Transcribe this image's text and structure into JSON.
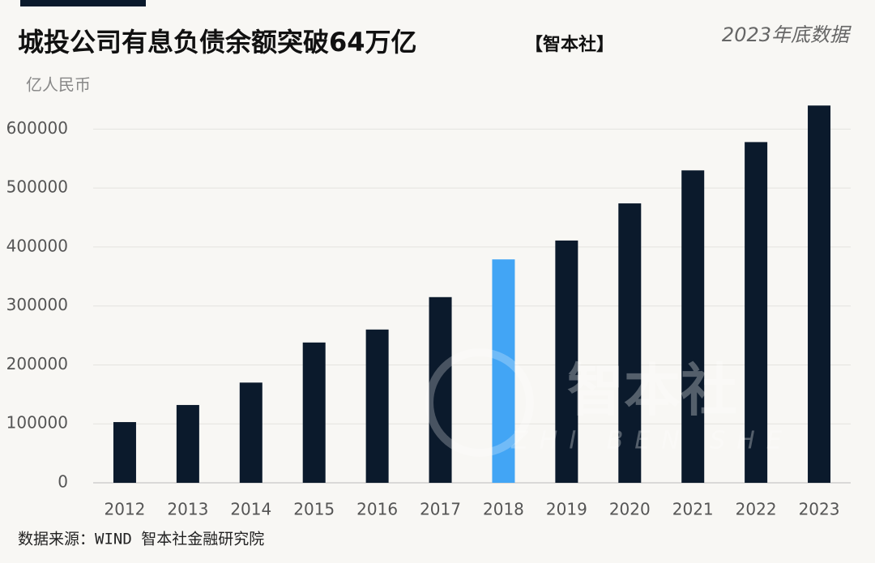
{
  "chart_data": {
    "type": "bar",
    "title": "城投公司有息负债余额突破64万亿",
    "title_tag": "【智本社】",
    "subtitle": "2023年底数据",
    "y_label": "亿人民币",
    "source": "数据来源：WIND 智本社金融研究院",
    "watermark": "智本社",
    "watermark_sub": "ZHI BEN SHE",
    "categories": [
      "2012",
      "2013",
      "2014",
      "2015",
      "2016",
      "2017",
      "2018",
      "2019",
      "2020",
      "2021",
      "2022",
      "2023"
    ],
    "values": [
      103000,
      132000,
      170000,
      238000,
      260000,
      315000,
      379000,
      411000,
      474000,
      530000,
      578000,
      640000
    ],
    "colors": [
      "#0b1a2c",
      "#0b1a2c",
      "#0b1a2c",
      "#0b1a2c",
      "#0b1a2c",
      "#0b1a2c",
      "#42a5f5",
      "#0b1a2c",
      "#0b1a2c",
      "#0b1a2c",
      "#0b1a2c",
      "#0b1a2c"
    ],
    "ylim": [
      0,
      650000
    ],
    "yticks": [
      0,
      100000,
      200000,
      300000,
      400000,
      500000,
      600000
    ],
    "grid": true
  }
}
